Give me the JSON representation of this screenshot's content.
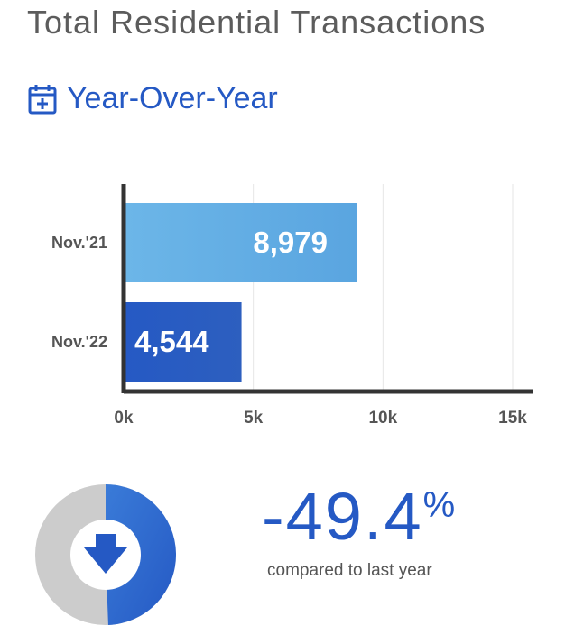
{
  "header": {
    "title": "Total Residential Transactions",
    "subtitle": "Year-Over-Year",
    "icon": "calendar-plus-icon"
  },
  "chart_data": {
    "type": "bar",
    "orientation": "horizontal",
    "categories": [
      "Nov.'21",
      "Nov.'22"
    ],
    "values": [
      8979,
      4544
    ],
    "value_labels": [
      "8,979",
      "4,544"
    ],
    "x_ticks": [
      "0k",
      "5k",
      "10k",
      "15k"
    ],
    "x_tick_values": [
      0,
      5000,
      10000,
      15000
    ],
    "xlim": [
      0,
      15000
    ],
    "grid": true,
    "colors": [
      "#5aa5e0",
      "#2559c4"
    ]
  },
  "change": {
    "value": "-49.4",
    "unit": "%",
    "caption": "compared to last year",
    "direction_icon": "arrow-down-icon",
    "ring_fraction": 0.494,
    "colors": {
      "accent": "#2559c4",
      "track": "#cccccc"
    }
  }
}
